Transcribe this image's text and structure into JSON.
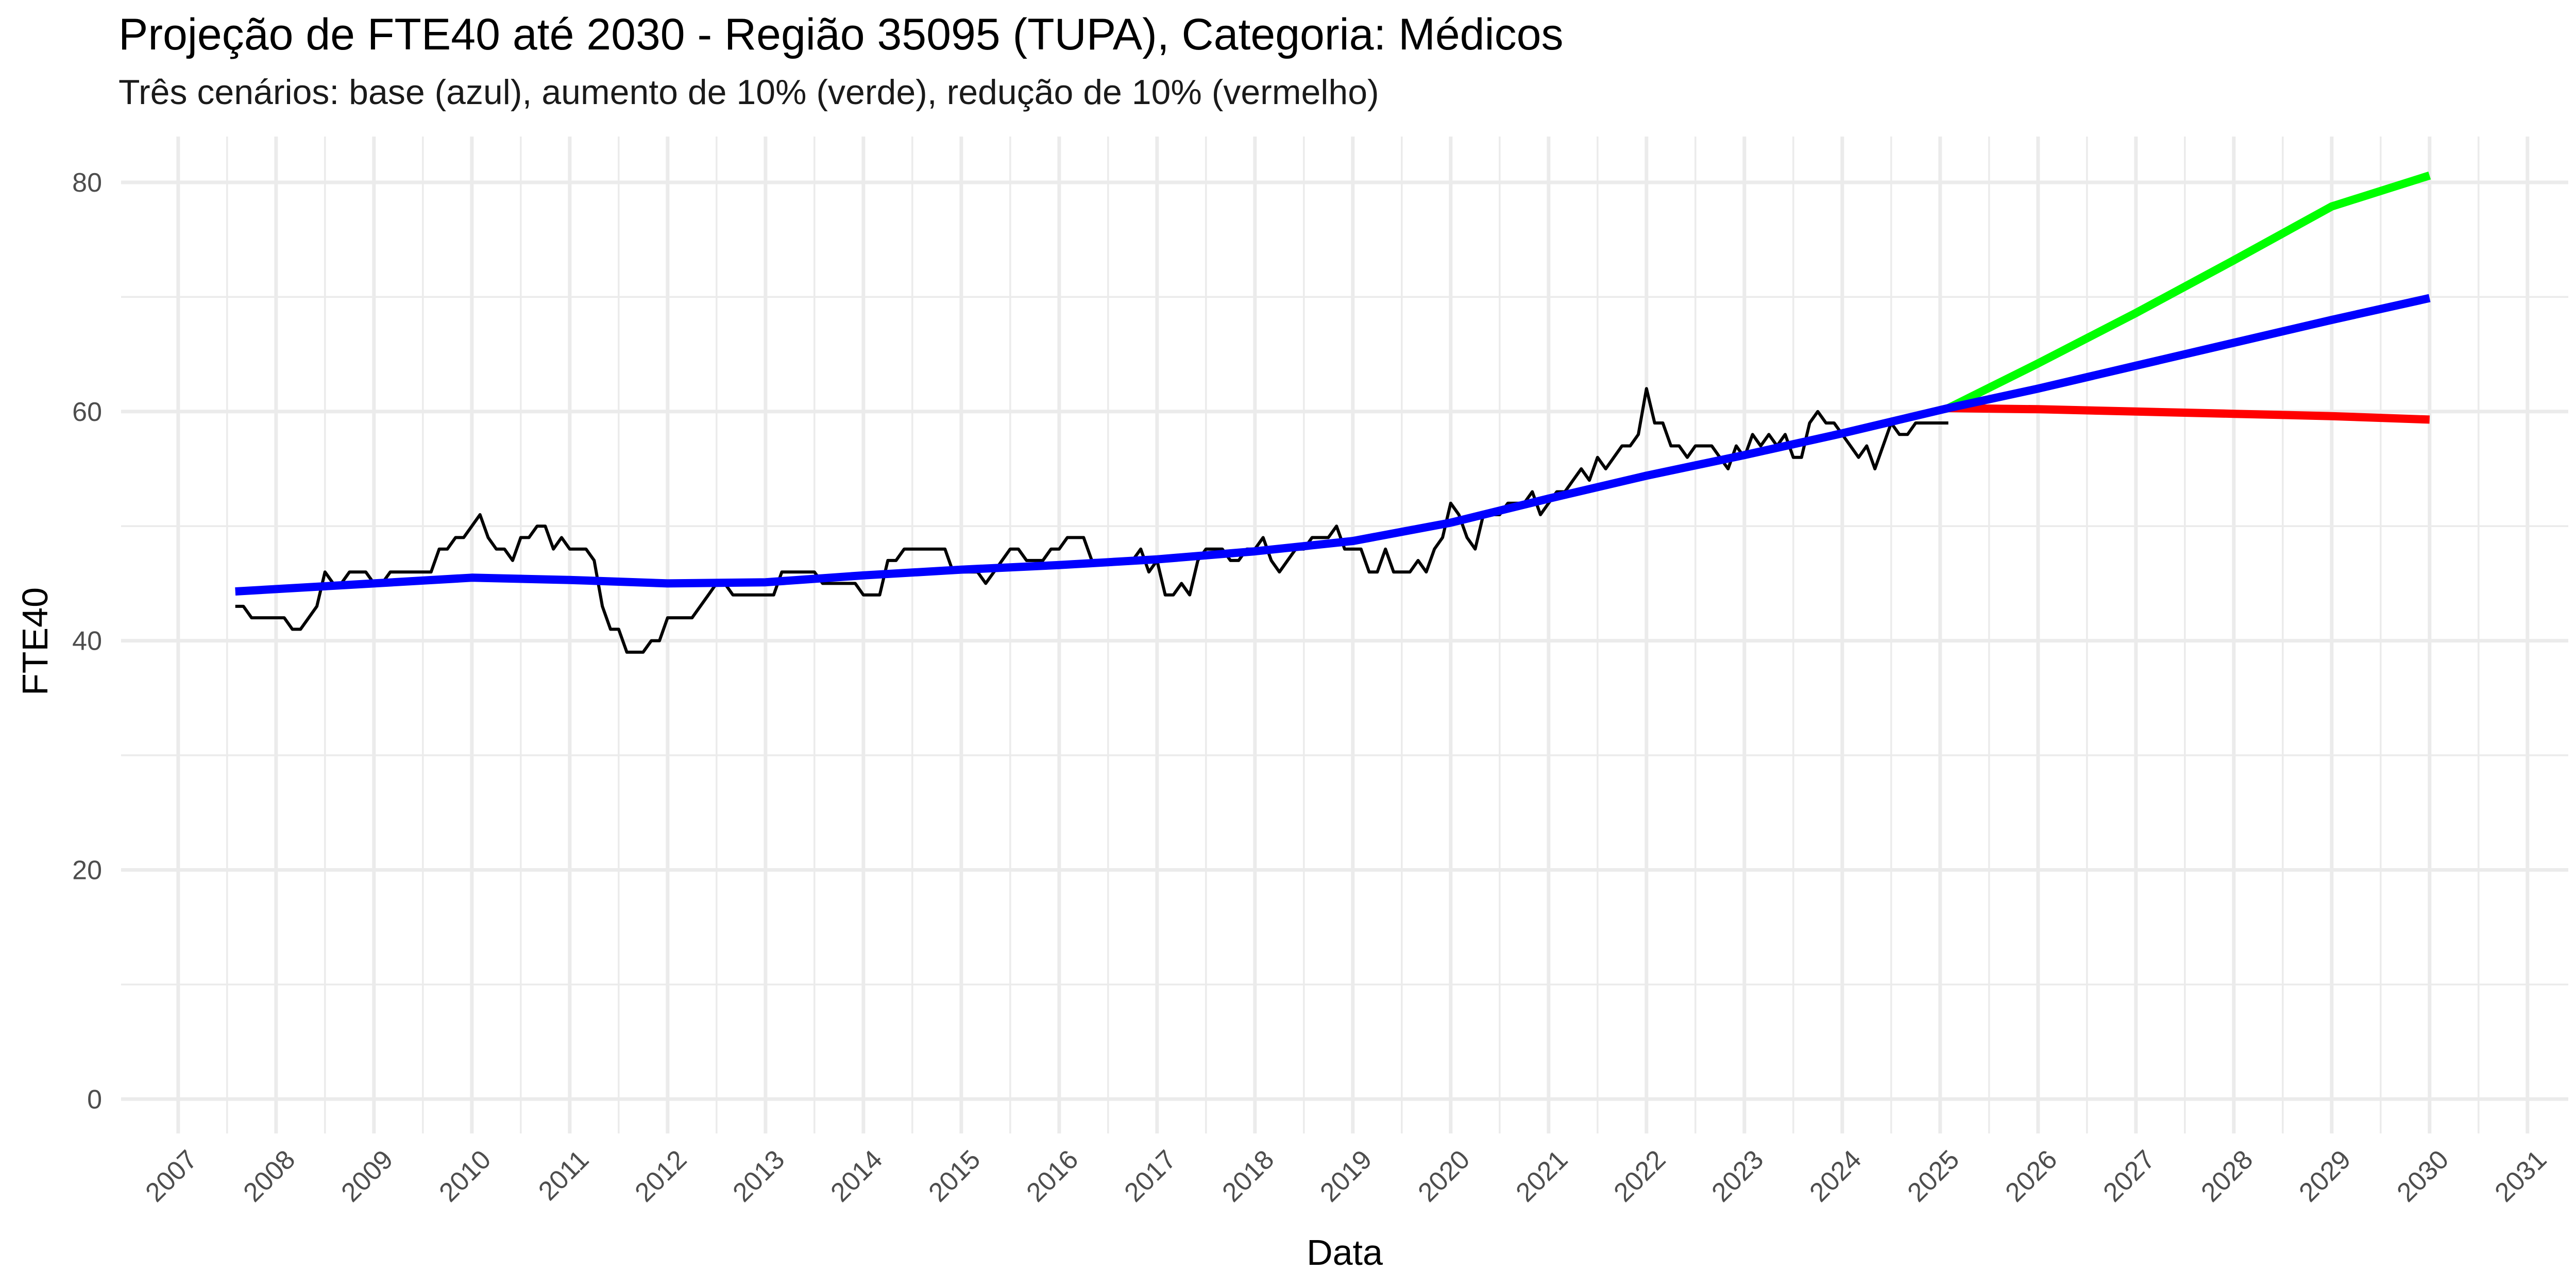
{
  "chart_data": {
    "type": "line",
    "title": "Projeção de FTE40 até 2030 - Região 35095 (TUPA), Categoria: Médicos",
    "subtitle": "Três cenários: base (azul), aumento de 10% (verde), redução de 10% (vermelho)",
    "xlabel": "Data",
    "ylabel": "FTE40",
    "x_ticks": [
      "2007",
      "2008",
      "2009",
      "2010",
      "2011",
      "2012",
      "2013",
      "2014",
      "2015",
      "2016",
      "2017",
      "2018",
      "2019",
      "2020",
      "2021",
      "2022",
      "2023",
      "2024",
      "2025",
      "2026",
      "2027",
      "2028",
      "2029",
      "2030",
      "2031"
    ],
    "y_ticks": [
      0,
      20,
      40,
      60,
      80
    ],
    "xlim": [
      "2006-06-01",
      "2031-06-01"
    ],
    "ylim": [
      -3,
      84
    ],
    "grid": true,
    "legend": "none",
    "colors": {
      "observed": "#000000",
      "base": "#0000ff",
      "increase": "#00ff00",
      "decrease": "#ff0000",
      "grid": "#ebebeb"
    },
    "series": [
      {
        "key": "observed",
        "points": [
          [
            "2007-08",
            43
          ],
          [
            "2007-09",
            43
          ],
          [
            "2007-10",
            42
          ],
          [
            "2007-11",
            42
          ],
          [
            "2007-12",
            42
          ],
          [
            "2008-01",
            42
          ],
          [
            "2008-02",
            42
          ],
          [
            "2008-03",
            41
          ],
          [
            "2008-04",
            41
          ],
          [
            "2008-05",
            42
          ],
          [
            "2008-06",
            43
          ],
          [
            "2008-07",
            46
          ],
          [
            "2008-08",
            45
          ],
          [
            "2008-09",
            45
          ],
          [
            "2008-10",
            46
          ],
          [
            "2008-11",
            46
          ],
          [
            "2008-12",
            46
          ],
          [
            "2009-01",
            45
          ],
          [
            "2009-02",
            45
          ],
          [
            "2009-03",
            46
          ],
          [
            "2009-04",
            46
          ],
          [
            "2009-05",
            46
          ],
          [
            "2009-06",
            46
          ],
          [
            "2009-07",
            46
          ],
          [
            "2009-08",
            46
          ],
          [
            "2009-09",
            48
          ],
          [
            "2009-10",
            48
          ],
          [
            "2009-11",
            49
          ],
          [
            "2009-12",
            49
          ],
          [
            "2010-01",
            50
          ],
          [
            "2010-02",
            51
          ],
          [
            "2010-03",
            49
          ],
          [
            "2010-04",
            48
          ],
          [
            "2010-05",
            48
          ],
          [
            "2010-06",
            47
          ],
          [
            "2010-07",
            49
          ],
          [
            "2010-08",
            49
          ],
          [
            "2010-09",
            50
          ],
          [
            "2010-10",
            50
          ],
          [
            "2010-11",
            48
          ],
          [
            "2010-12",
            49
          ],
          [
            "2011-01",
            48
          ],
          [
            "2011-02",
            48
          ],
          [
            "2011-03",
            48
          ],
          [
            "2011-04",
            47
          ],
          [
            "2011-05",
            43
          ],
          [
            "2011-06",
            41
          ],
          [
            "2011-07",
            41
          ],
          [
            "2011-08",
            39
          ],
          [
            "2011-09",
            39
          ],
          [
            "2011-10",
            39
          ],
          [
            "2011-11",
            40
          ],
          [
            "2011-12",
            40
          ],
          [
            "2012-01",
            42
          ],
          [
            "2012-02",
            42
          ],
          [
            "2012-03",
            42
          ],
          [
            "2012-04",
            42
          ],
          [
            "2012-05",
            43
          ],
          [
            "2012-06",
            44
          ],
          [
            "2012-07",
            45
          ],
          [
            "2012-08",
            45
          ],
          [
            "2012-09",
            44
          ],
          [
            "2012-10",
            44
          ],
          [
            "2012-11",
            44
          ],
          [
            "2012-12",
            44
          ],
          [
            "2013-01",
            44
          ],
          [
            "2013-02",
            44
          ],
          [
            "2013-03",
            46
          ],
          [
            "2013-04",
            46
          ],
          [
            "2013-05",
            46
          ],
          [
            "2013-06",
            46
          ],
          [
            "2013-07",
            46
          ],
          [
            "2013-08",
            45
          ],
          [
            "2013-09",
            45
          ],
          [
            "2013-10",
            45
          ],
          [
            "2013-11",
            45
          ],
          [
            "2013-12",
            45
          ],
          [
            "2014-01",
            44
          ],
          [
            "2014-02",
            44
          ],
          [
            "2014-03",
            44
          ],
          [
            "2014-04",
            47
          ],
          [
            "2014-05",
            47
          ],
          [
            "2014-06",
            48
          ],
          [
            "2014-07",
            48
          ],
          [
            "2014-08",
            48
          ],
          [
            "2014-09",
            48
          ],
          [
            "2014-10",
            48
          ],
          [
            "2014-11",
            48
          ],
          [
            "2014-12",
            46
          ],
          [
            "2015-01",
            46
          ],
          [
            "2015-02",
            46
          ],
          [
            "2015-03",
            46
          ],
          [
            "2015-04",
            45
          ],
          [
            "2015-05",
            46
          ],
          [
            "2015-06",
            47
          ],
          [
            "2015-07",
            48
          ],
          [
            "2015-08",
            48
          ],
          [
            "2015-09",
            47
          ],
          [
            "2015-10",
            47
          ],
          [
            "2015-11",
            47
          ],
          [
            "2015-12",
            48
          ],
          [
            "2016-01",
            48
          ],
          [
            "2016-02",
            49
          ],
          [
            "2016-03",
            49
          ],
          [
            "2016-04",
            49
          ],
          [
            "2016-05",
            47
          ],
          [
            "2016-06",
            47
          ],
          [
            "2016-07",
            47
          ],
          [
            "2016-08",
            47
          ],
          [
            "2016-09",
            47
          ],
          [
            "2016-10",
            47
          ],
          [
            "2016-11",
            48
          ],
          [
            "2016-12",
            46
          ],
          [
            "2017-01",
            47
          ],
          [
            "2017-02",
            44
          ],
          [
            "2017-03",
            44
          ],
          [
            "2017-04",
            45
          ],
          [
            "2017-05",
            44
          ],
          [
            "2017-06",
            47
          ],
          [
            "2017-07",
            48
          ],
          [
            "2017-08",
            48
          ],
          [
            "2017-09",
            48
          ],
          [
            "2017-10",
            47
          ],
          [
            "2017-11",
            47
          ],
          [
            "2017-12",
            48
          ],
          [
            "2018-01",
            48
          ],
          [
            "2018-02",
            49
          ],
          [
            "2018-03",
            47
          ],
          [
            "2018-04",
            46
          ],
          [
            "2018-05",
            47
          ],
          [
            "2018-06",
            48
          ],
          [
            "2018-07",
            48
          ],
          [
            "2018-08",
            49
          ],
          [
            "2018-09",
            49
          ],
          [
            "2018-10",
            49
          ],
          [
            "2018-11",
            50
          ],
          [
            "2018-12",
            48
          ],
          [
            "2019-01",
            48
          ],
          [
            "2019-02",
            48
          ],
          [
            "2019-03",
            46
          ],
          [
            "2019-04",
            46
          ],
          [
            "2019-05",
            48
          ],
          [
            "2019-06",
            46
          ],
          [
            "2019-07",
            46
          ],
          [
            "2019-08",
            46
          ],
          [
            "2019-09",
            47
          ],
          [
            "2019-10",
            46
          ],
          [
            "2019-11",
            48
          ],
          [
            "2019-12",
            49
          ],
          [
            "2020-01",
            52
          ],
          [
            "2020-02",
            51
          ],
          [
            "2020-03",
            49
          ],
          [
            "2020-04",
            48
          ],
          [
            "2020-05",
            51
          ],
          [
            "2020-06",
            51
          ],
          [
            "2020-07",
            51
          ],
          [
            "2020-08",
            52
          ],
          [
            "2020-09",
            52
          ],
          [
            "2020-10",
            52
          ],
          [
            "2020-11",
            53
          ],
          [
            "2020-12",
            51
          ],
          [
            "2021-01",
            52
          ],
          [
            "2021-02",
            53
          ],
          [
            "2021-03",
            53
          ],
          [
            "2021-04",
            54
          ],
          [
            "2021-05",
            55
          ],
          [
            "2021-06",
            54
          ],
          [
            "2021-07",
            56
          ],
          [
            "2021-08",
            55
          ],
          [
            "2021-09",
            56
          ],
          [
            "2021-10",
            57
          ],
          [
            "2021-11",
            57
          ],
          [
            "2021-12",
            58
          ],
          [
            "2022-01",
            62
          ],
          [
            "2022-02",
            59
          ],
          [
            "2022-03",
            59
          ],
          [
            "2022-04",
            57
          ],
          [
            "2022-05",
            57
          ],
          [
            "2022-06",
            56
          ],
          [
            "2022-07",
            57
          ],
          [
            "2022-08",
            57
          ],
          [
            "2022-09",
            57
          ],
          [
            "2022-10",
            56
          ],
          [
            "2022-11",
            55
          ],
          [
            "2022-12",
            57
          ],
          [
            "2023-01",
            56
          ],
          [
            "2023-02",
            58
          ],
          [
            "2023-03",
            57
          ],
          [
            "2023-04",
            58
          ],
          [
            "2023-05",
            57
          ],
          [
            "2023-06",
            58
          ],
          [
            "2023-07",
            56
          ],
          [
            "2023-08",
            56
          ],
          [
            "2023-09",
            59
          ],
          [
            "2023-10",
            60
          ],
          [
            "2023-11",
            59
          ],
          [
            "2023-12",
            59
          ],
          [
            "2024-01",
            58
          ],
          [
            "2024-02",
            57
          ],
          [
            "2024-03",
            56
          ],
          [
            "2024-04",
            57
          ],
          [
            "2024-05",
            55
          ],
          [
            "2024-06",
            57
          ],
          [
            "2024-07",
            59
          ],
          [
            "2024-08",
            58
          ],
          [
            "2024-09",
            58
          ],
          [
            "2024-10",
            59
          ],
          [
            "2024-11",
            59
          ],
          [
            "2024-12",
            59
          ],
          [
            "2025-01",
            59
          ],
          [
            "2025-02",
            59
          ]
        ]
      },
      {
        "key": "base",
        "points": [
          [
            "2007-08",
            44.3
          ],
          [
            "2009-01",
            45.0
          ],
          [
            "2010-01",
            45.5
          ],
          [
            "2011-01",
            45.3
          ],
          [
            "2012-01",
            45.0
          ],
          [
            "2013-01",
            45.1
          ],
          [
            "2014-01",
            45.7
          ],
          [
            "2015-01",
            46.2
          ],
          [
            "2016-01",
            46.6
          ],
          [
            "2017-01",
            47.1
          ],
          [
            "2018-01",
            47.8
          ],
          [
            "2019-01",
            48.7
          ],
          [
            "2020-01",
            50.3
          ],
          [
            "2021-01",
            52.4
          ],
          [
            "2022-01",
            54.4
          ],
          [
            "2023-01",
            56.2
          ],
          [
            "2024-01",
            58.1
          ],
          [
            "2025-02",
            60.3
          ],
          [
            "2026-01",
            62.0
          ],
          [
            "2027-01",
            64.0
          ],
          [
            "2028-01",
            66.0
          ],
          [
            "2029-01",
            68.0
          ],
          [
            "2030-01",
            69.9
          ]
        ]
      },
      {
        "key": "increase",
        "points": [
          [
            "2025-02",
            60.3
          ],
          [
            "2026-01",
            64.2
          ],
          [
            "2027-01",
            68.6
          ],
          [
            "2028-01",
            73.2
          ],
          [
            "2029-01",
            77.9
          ],
          [
            "2030-01",
            80.6
          ]
        ]
      },
      {
        "key": "decrease",
        "points": [
          [
            "2025-02",
            60.3
          ],
          [
            "2026-01",
            60.2
          ],
          [
            "2027-01",
            60.0
          ],
          [
            "2028-01",
            59.8
          ],
          [
            "2029-01",
            59.6
          ],
          [
            "2030-01",
            59.3
          ]
        ]
      }
    ]
  }
}
